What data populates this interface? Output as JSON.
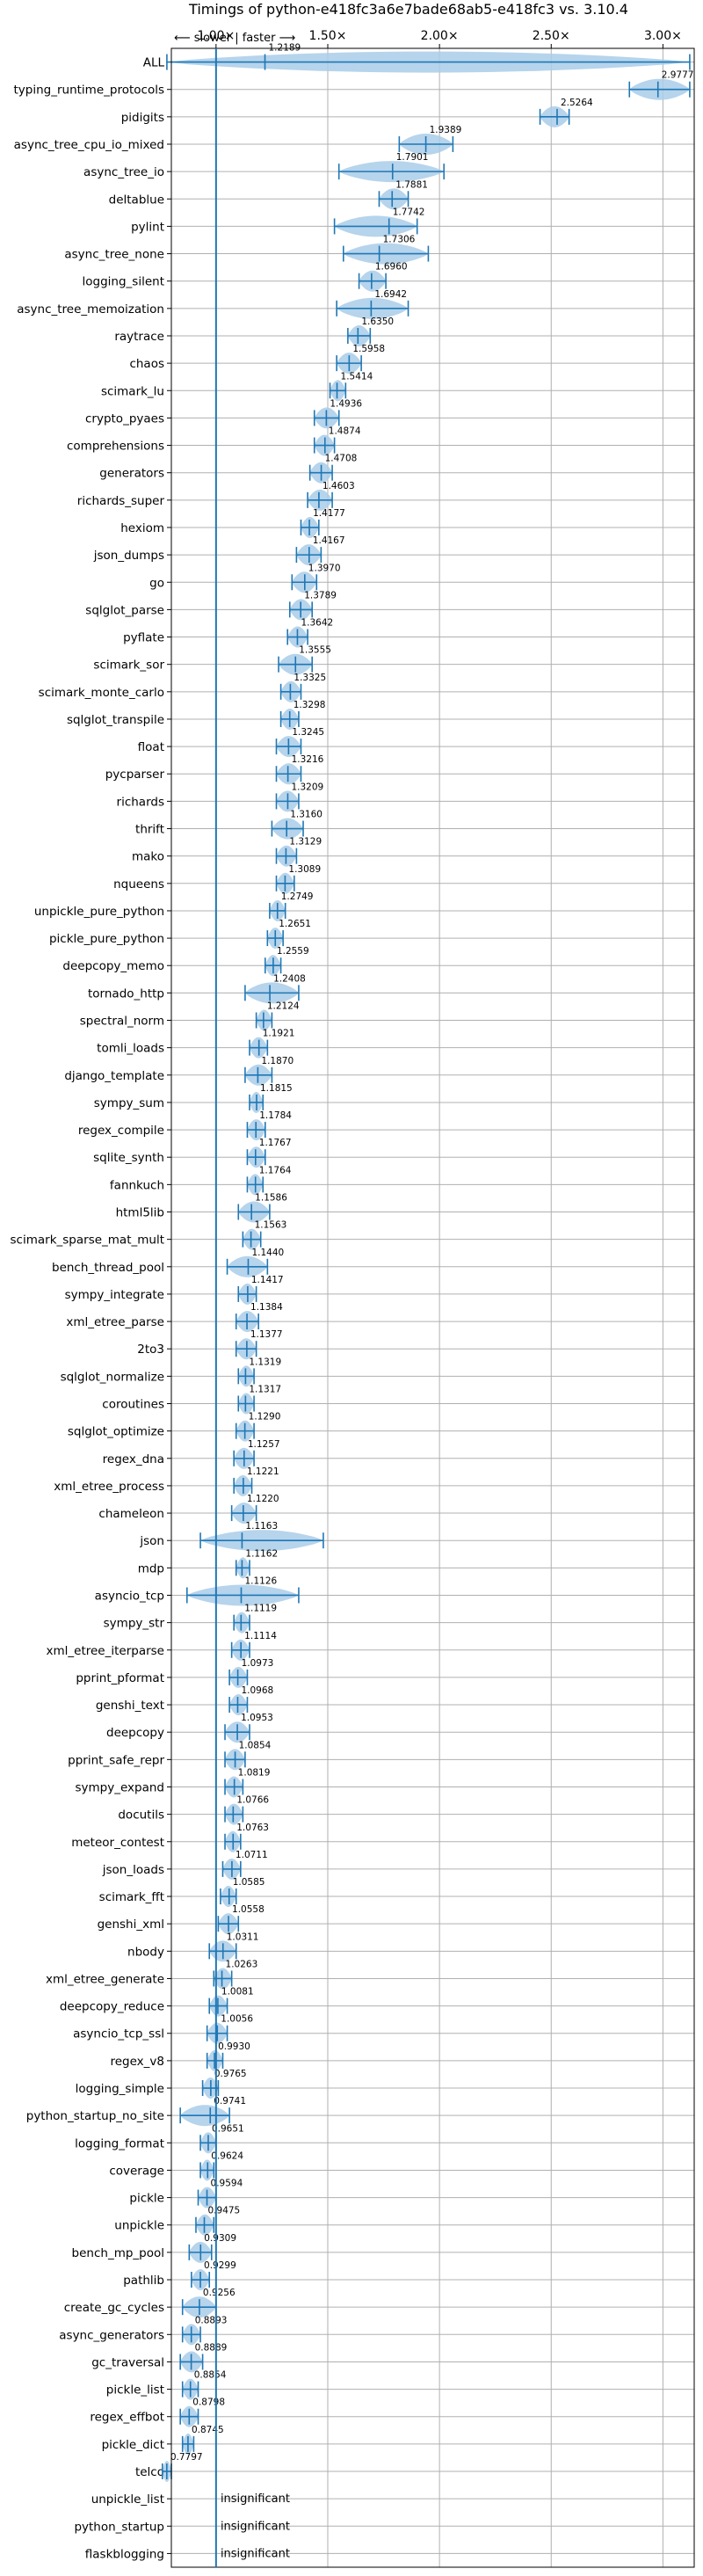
{
  "chart_data": {
    "type": "violin",
    "title": "Timings of python-e418fc3a6e7bade68ab5-e418fc3 vs. 3.10.4",
    "direction_label": "⟵ slower | faster ⟶",
    "xlim": [
      0.8,
      3.14
    ],
    "xticks": [
      1.0,
      1.5,
      2.0,
      2.5,
      3.0
    ],
    "xtick_labels": [
      "1.00×",
      "1.50×",
      "2.00×",
      "2.50×",
      "3.00×"
    ],
    "grid": true,
    "insignificant_label": "insignificant",
    "colors": {
      "violin": "#a9cce9",
      "line": "#1f77b4",
      "significant_marker": "#ff9999",
      "grid": "#b0b0b0"
    },
    "benchmarks": [
      {
        "name": "ALL",
        "value": 1.2189,
        "min": 0.78,
        "max": 3.12
      },
      {
        "name": "typing_runtime_protocols",
        "value": 2.9777,
        "min": 2.85,
        "max": 3.12
      },
      {
        "name": "pidigits",
        "value": 2.5264,
        "min": 2.45,
        "max": 2.58
      },
      {
        "name": "async_tree_cpu_io_mixed",
        "value": 1.9389,
        "min": 1.82,
        "max": 2.06
      },
      {
        "name": "async_tree_io",
        "value": 1.7901,
        "min": 1.55,
        "max": 2.02
      },
      {
        "name": "deltablue",
        "value": 1.7881,
        "min": 1.73,
        "max": 1.86
      },
      {
        "name": "pylint",
        "value": 1.7742,
        "min": 1.53,
        "max": 1.9
      },
      {
        "name": "async_tree_none",
        "value": 1.7306,
        "min": 1.57,
        "max": 1.95
      },
      {
        "name": "logging_silent",
        "value": 1.696,
        "min": 1.64,
        "max": 1.76
      },
      {
        "name": "async_tree_memoization",
        "value": 1.6942,
        "min": 1.54,
        "max": 1.86
      },
      {
        "name": "raytrace",
        "value": 1.635,
        "min": 1.59,
        "max": 1.69
      },
      {
        "name": "chaos",
        "value": 1.5958,
        "min": 1.54,
        "max": 1.65
      },
      {
        "name": "scimark_lu",
        "value": 1.5414,
        "min": 1.51,
        "max": 1.58
      },
      {
        "name": "crypto_pyaes",
        "value": 1.4936,
        "min": 1.44,
        "max": 1.55
      },
      {
        "name": "comprehensions",
        "value": 1.4874,
        "min": 1.44,
        "max": 1.53
      },
      {
        "name": "generators",
        "value": 1.4708,
        "min": 1.42,
        "max": 1.52
      },
      {
        "name": "richards_super",
        "value": 1.4603,
        "min": 1.41,
        "max": 1.52
      },
      {
        "name": "hexiom",
        "value": 1.4177,
        "min": 1.38,
        "max": 1.46
      },
      {
        "name": "json_dumps",
        "value": 1.4167,
        "min": 1.36,
        "max": 1.47
      },
      {
        "name": "go",
        "value": 1.397,
        "min": 1.34,
        "max": 1.45
      },
      {
        "name": "sqlglot_parse",
        "value": 1.3789,
        "min": 1.33,
        "max": 1.43
      },
      {
        "name": "pyflate",
        "value": 1.3642,
        "min": 1.32,
        "max": 1.41
      },
      {
        "name": "scimark_sor",
        "value": 1.3555,
        "min": 1.28,
        "max": 1.43
      },
      {
        "name": "scimark_monte_carlo",
        "value": 1.3325,
        "min": 1.29,
        "max": 1.38
      },
      {
        "name": "sqlglot_transpile",
        "value": 1.3298,
        "min": 1.29,
        "max": 1.37
      },
      {
        "name": "float",
        "value": 1.3245,
        "min": 1.27,
        "max": 1.38
      },
      {
        "name": "pycparser",
        "value": 1.3216,
        "min": 1.27,
        "max": 1.38
      },
      {
        "name": "richards",
        "value": 1.3209,
        "min": 1.27,
        "max": 1.37
      },
      {
        "name": "thrift",
        "value": 1.316,
        "min": 1.25,
        "max": 1.39
      },
      {
        "name": "mako",
        "value": 1.3129,
        "min": 1.27,
        "max": 1.36
      },
      {
        "name": "nqueens",
        "value": 1.3089,
        "min": 1.27,
        "max": 1.35
      },
      {
        "name": "unpickle_pure_python",
        "value": 1.2749,
        "min": 1.24,
        "max": 1.31
      },
      {
        "name": "pickle_pure_python",
        "value": 1.2651,
        "min": 1.23,
        "max": 1.3
      },
      {
        "name": "deepcopy_memo",
        "value": 1.2559,
        "min": 1.22,
        "max": 1.29
      },
      {
        "name": "tornado_http",
        "value": 1.2408,
        "min": 1.13,
        "max": 1.37
      },
      {
        "name": "spectral_norm",
        "value": 1.2124,
        "min": 1.18,
        "max": 1.25
      },
      {
        "name": "tomli_loads",
        "value": 1.1921,
        "min": 1.15,
        "max": 1.23
      },
      {
        "name": "django_template",
        "value": 1.187,
        "min": 1.13,
        "max": 1.25
      },
      {
        "name": "sympy_sum",
        "value": 1.1815,
        "min": 1.15,
        "max": 1.21
      },
      {
        "name": "regex_compile",
        "value": 1.1784,
        "min": 1.14,
        "max": 1.22
      },
      {
        "name": "sqlite_synth",
        "value": 1.1767,
        "min": 1.14,
        "max": 1.22
      },
      {
        "name": "fannkuch",
        "value": 1.1764,
        "min": 1.14,
        "max": 1.21
      },
      {
        "name": "html5lib",
        "value": 1.1586,
        "min": 1.1,
        "max": 1.24
      },
      {
        "name": "scimark_sparse_mat_mult",
        "value": 1.1563,
        "min": 1.12,
        "max": 1.2
      },
      {
        "name": "bench_thread_pool",
        "value": 1.144,
        "min": 1.05,
        "max": 1.23
      },
      {
        "name": "sympy_integrate",
        "value": 1.1417,
        "min": 1.1,
        "max": 1.18
      },
      {
        "name": "xml_etree_parse",
        "value": 1.1384,
        "min": 1.09,
        "max": 1.19
      },
      {
        "name": "2to3",
        "value": 1.1377,
        "min": 1.09,
        "max": 1.18
      },
      {
        "name": "sqlglot_normalize",
        "value": 1.1319,
        "min": 1.1,
        "max": 1.17
      },
      {
        "name": "coroutines",
        "value": 1.1317,
        "min": 1.1,
        "max": 1.17
      },
      {
        "name": "sqlglot_optimize",
        "value": 1.129,
        "min": 1.09,
        "max": 1.17
      },
      {
        "name": "regex_dna",
        "value": 1.1257,
        "min": 1.08,
        "max": 1.17
      },
      {
        "name": "xml_etree_process",
        "value": 1.1221,
        "min": 1.08,
        "max": 1.16
      },
      {
        "name": "chameleon",
        "value": 1.122,
        "min": 1.07,
        "max": 1.18
      },
      {
        "name": "json",
        "value": 1.1163,
        "min": 0.93,
        "max": 1.48
      },
      {
        "name": "mdp",
        "value": 1.1162,
        "min": 1.09,
        "max": 1.15
      },
      {
        "name": "asyncio_tcp",
        "value": 1.1126,
        "min": 0.87,
        "max": 1.37
      },
      {
        "name": "sympy_str",
        "value": 1.1119,
        "min": 1.08,
        "max": 1.15
      },
      {
        "name": "xml_etree_iterparse",
        "value": 1.1114,
        "min": 1.07,
        "max": 1.15
      },
      {
        "name": "pprint_pformat",
        "value": 1.0973,
        "min": 1.06,
        "max": 1.14
      },
      {
        "name": "genshi_text",
        "value": 1.0968,
        "min": 1.06,
        "max": 1.14
      },
      {
        "name": "deepcopy",
        "value": 1.0953,
        "min": 1.04,
        "max": 1.15
      },
      {
        "name": "pprint_safe_repr",
        "value": 1.0854,
        "min": 1.04,
        "max": 1.13
      },
      {
        "name": "sympy_expand",
        "value": 1.0819,
        "min": 1.04,
        "max": 1.12
      },
      {
        "name": "docutils",
        "value": 1.0766,
        "min": 1.04,
        "max": 1.12
      },
      {
        "name": "meteor_contest",
        "value": 1.0763,
        "min": 1.04,
        "max": 1.11
      },
      {
        "name": "json_loads",
        "value": 1.0711,
        "min": 1.03,
        "max": 1.11
      },
      {
        "name": "scimark_fft",
        "value": 1.0585,
        "min": 1.02,
        "max": 1.09
      },
      {
        "name": "genshi_xml",
        "value": 1.0558,
        "min": 1.01,
        "max": 1.1
      },
      {
        "name": "nbody",
        "value": 1.0311,
        "min": 0.97,
        "max": 1.09
      },
      {
        "name": "xml_etree_generate",
        "value": 1.0263,
        "min": 0.99,
        "max": 1.07
      },
      {
        "name": "deepcopy_reduce",
        "value": 1.0081,
        "min": 0.97,
        "max": 1.05
      },
      {
        "name": "asyncio_tcp_ssl",
        "value": 1.0056,
        "min": 0.96,
        "max": 1.05
      },
      {
        "name": "regex_v8",
        "value": 0.993,
        "min": 0.96,
        "max": 1.03
      },
      {
        "name": "logging_simple",
        "value": 0.9765,
        "min": 0.94,
        "max": 1.01
      },
      {
        "name": "python_startup_no_site",
        "value": 0.9741,
        "min": 0.84,
        "max": 1.06
      },
      {
        "name": "logging_format",
        "value": 0.9651,
        "min": 0.93,
        "max": 1.0
      },
      {
        "name": "coverage",
        "value": 0.9624,
        "min": 0.93,
        "max": 0.99
      },
      {
        "name": "pickle",
        "value": 0.9594,
        "min": 0.92,
        "max": 1.0
      },
      {
        "name": "unpickle",
        "value": 0.9475,
        "min": 0.91,
        "max": 0.99
      },
      {
        "name": "bench_mp_pool",
        "value": 0.9309,
        "min": 0.88,
        "max": 0.98
      },
      {
        "name": "pathlib",
        "value": 0.9299,
        "min": 0.89,
        "max": 0.97
      },
      {
        "name": "create_gc_cycles",
        "value": 0.9256,
        "min": 0.85,
        "max": 1.0
      },
      {
        "name": "async_generators",
        "value": 0.8893,
        "min": 0.85,
        "max": 0.93
      },
      {
        "name": "gc_traversal",
        "value": 0.8889,
        "min": 0.84,
        "max": 0.94
      },
      {
        "name": "pickle_list",
        "value": 0.8854,
        "min": 0.85,
        "max": 0.92
      },
      {
        "name": "regex_effbot",
        "value": 0.8798,
        "min": 0.84,
        "max": 0.92
      },
      {
        "name": "pickle_dict",
        "value": 0.8745,
        "min": 0.85,
        "max": 0.9
      },
      {
        "name": "telco",
        "value": 0.7797,
        "min": 0.76,
        "max": 0.8
      },
      {
        "name": "unpickle_list",
        "insignificant": true
      },
      {
        "name": "python_startup",
        "insignificant": true
      },
      {
        "name": "flaskblogging",
        "insignificant": true
      }
    ]
  }
}
